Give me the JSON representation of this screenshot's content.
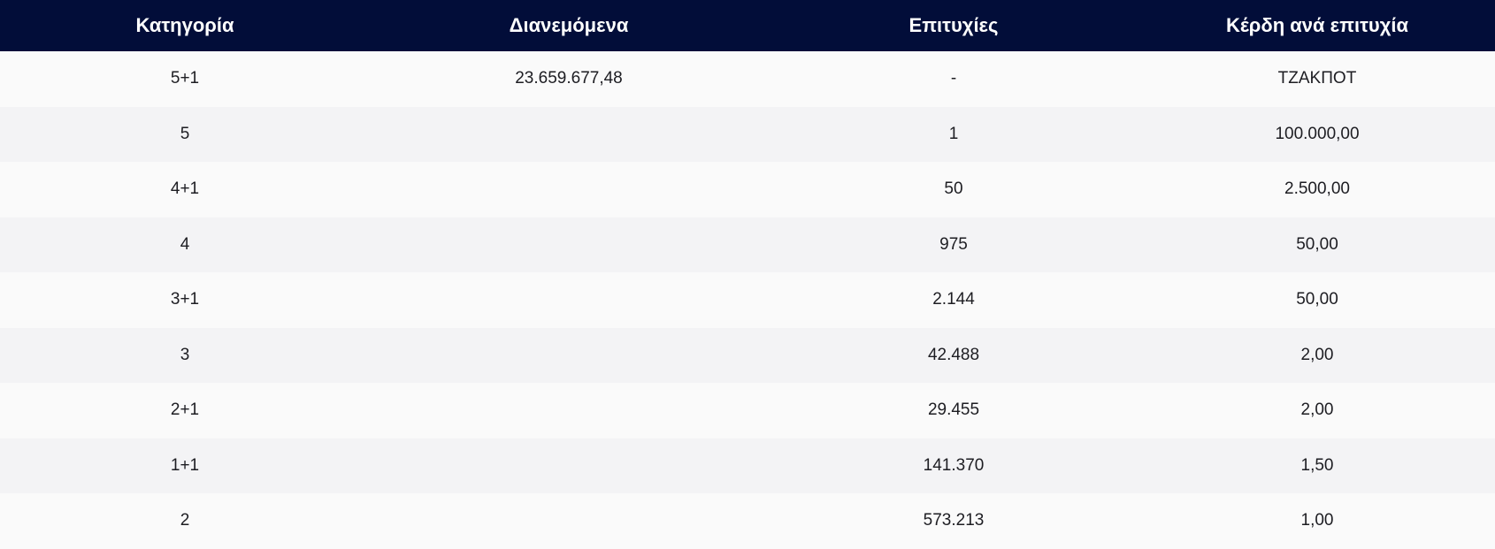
{
  "table": {
    "headers": [
      "Κατηγορία",
      "Διανεμόμενα",
      "Επιτυχίες",
      "Κέρδη ανά επιτυχία"
    ],
    "rows": [
      [
        "5+1",
        "23.659.677,48",
        "-",
        "ΤΖΑΚΠΟΤ"
      ],
      [
        "5",
        "",
        "1",
        "100.000,00"
      ],
      [
        "4+1",
        "",
        "50",
        "2.500,00"
      ],
      [
        "4",
        "",
        "975",
        "50,00"
      ],
      [
        "3+1",
        "",
        "2.144",
        "50,00"
      ],
      [
        "3",
        "",
        "42.488",
        "2,00"
      ],
      [
        "2+1",
        "",
        "29.455",
        "2,00"
      ],
      [
        "1+1",
        "",
        "141.370",
        "1,50"
      ],
      [
        "2",
        "",
        "573.213",
        "1,00"
      ]
    ]
  },
  "colors": {
    "header_bg": "#020d39",
    "header_text": "#ffffff",
    "row_light": "#fafafa",
    "row_dark": "#f3f3f5",
    "text": "#1d1d22"
  }
}
